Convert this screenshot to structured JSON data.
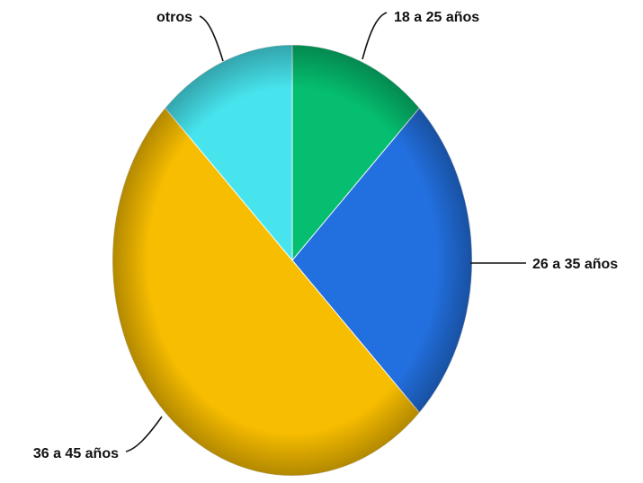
{
  "chart_data": {
    "type": "pie",
    "slices": [
      {
        "label": "18 a 25 años",
        "value": 12.5,
        "color": "#05be6f"
      },
      {
        "label": "26 a 35 años",
        "value": 25.0,
        "color": "#2270e0"
      },
      {
        "label": "36 a 45 años",
        "value": 50.0,
        "color": "#f7bd00"
      },
      {
        "label": "otros",
        "value": 12.5,
        "color": "#47e4ee"
      }
    ],
    "start_angle_deg": 0,
    "direction": "clockwise"
  }
}
